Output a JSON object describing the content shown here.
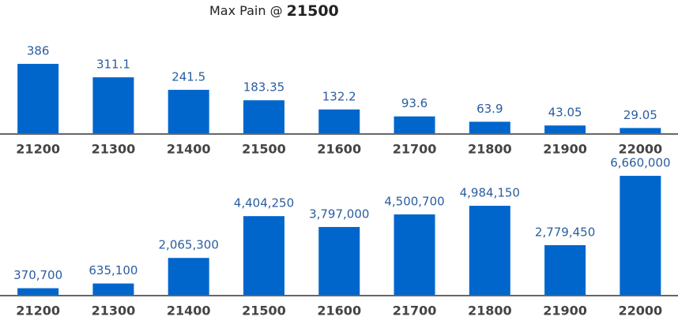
{
  "header": {
    "label": "Max Pain @",
    "value": "21500"
  },
  "chart_data": [
    {
      "type": "bar",
      "categories": [
        "21200",
        "21300",
        "21400",
        "21500",
        "21600",
        "21700",
        "21800",
        "21900",
        "22000"
      ],
      "values": [
        386,
        311.1,
        241.5,
        183.35,
        132.2,
        93.6,
        63.9,
        43.05,
        29.05
      ],
      "color": "#0066cc",
      "ylim": [
        0,
        500
      ]
    },
    {
      "type": "bar",
      "categories": [
        "21200",
        "21300",
        "21400",
        "21500",
        "21600",
        "21700",
        "21800",
        "21900",
        "22000"
      ],
      "values": [
        370700,
        635100,
        2065300,
        4404250,
        3797000,
        4500700,
        4984150,
        2779450,
        6660000
      ],
      "value_labels": [
        "370,700",
        "635,100",
        "2,065,300",
        "4,404,250",
        "3,797,000",
        "4,500,700",
        "4,984,150",
        "2,779,450",
        "6,660,000"
      ],
      "color": "#0066cc",
      "ylim": [
        0,
        6000000
      ]
    }
  ]
}
